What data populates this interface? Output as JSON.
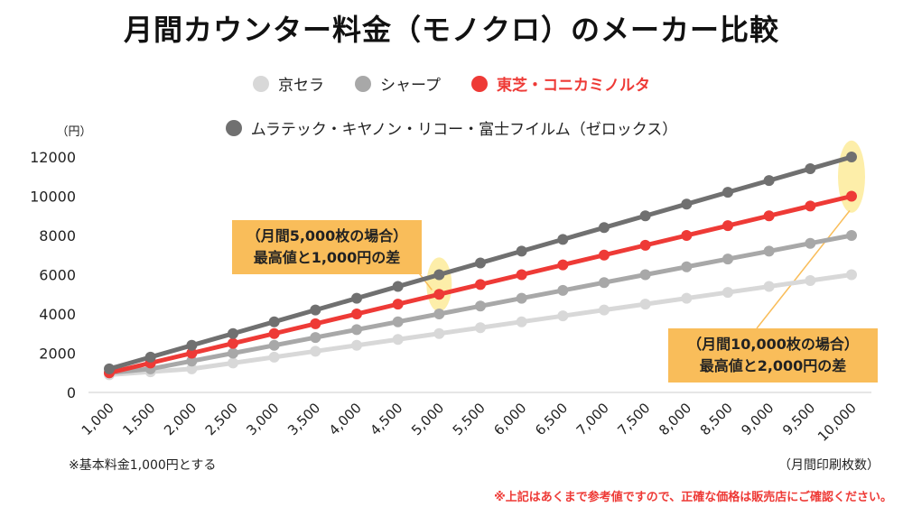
{
  "chart_data": {
    "type": "line",
    "title": "月間カウンター料金（モノクロ）のメーカー比較",
    "ylabel": "（円）",
    "xlabel": "（月間印刷枚数）",
    "ylim": [
      0,
      12000
    ],
    "yticks": [
      "0",
      "2000",
      "4000",
      "6000",
      "8000",
      "10000",
      "12000"
    ],
    "categories": [
      "1,000",
      "1,500",
      "2,000",
      "2,500",
      "3,000",
      "3,500",
      "4,000",
      "4,500",
      "5,000",
      "5,500",
      "6,000",
      "6,500",
      "7,000",
      "7,500",
      "8,000",
      "8,500",
      "9,000",
      "9,500",
      "10,000"
    ],
    "series": [
      {
        "name": "京セラ",
        "color": "#d8d8d8",
        "values": [
          900,
          1050,
          1200,
          1500,
          1800,
          2100,
          2400,
          2700,
          3000,
          3300,
          3600,
          3900,
          4200,
          4500,
          4800,
          5100,
          5400,
          5700,
          6000
        ]
      },
      {
        "name": "シャープ",
        "color": "#a8a8a8",
        "values": [
          1000,
          1200,
          1600,
          2000,
          2400,
          2800,
          3200,
          3600,
          4000,
          4400,
          4800,
          5200,
          5600,
          6000,
          6400,
          6800,
          7200,
          7600,
          8000
        ]
      },
      {
        "name": "東芝・コニカミノルタ",
        "color": "#ee3a36",
        "values": [
          1000,
          1500,
          2000,
          2500,
          3000,
          3500,
          4000,
          4500,
          5000,
          5500,
          6000,
          6500,
          7000,
          7500,
          8000,
          8500,
          9000,
          9500,
          10000
        ]
      },
      {
        "name": "ムラテック・キヤノン・リコー・富士フイルム（ゼロックス）",
        "color": "#707070",
        "values": [
          1200,
          1800,
          2400,
          3000,
          3600,
          4200,
          4800,
          5400,
          6000,
          6600,
          7200,
          7800,
          8400,
          9000,
          9600,
          10200,
          10800,
          11400,
          12000
        ]
      }
    ],
    "annotations": [
      {
        "line1": "（月間5,000枚の場合）",
        "line2": "最高値と1,000円の差"
      },
      {
        "line1": "（月間10,000枚の場合）",
        "line2": "最高値と2,000円の差"
      }
    ]
  },
  "legend": {
    "row1": [
      "京セラ",
      "シャープ",
      "東芝・コニカミノルタ"
    ],
    "row2": [
      "ムラテック・キヤノン・リコー・富士フイルム（ゼロックス）"
    ]
  },
  "footnote": "※基本料金1,000円とする",
  "disclaimer": "※上記はあくまで参考値ですので、正確な価格は販売店にご確認ください。"
}
